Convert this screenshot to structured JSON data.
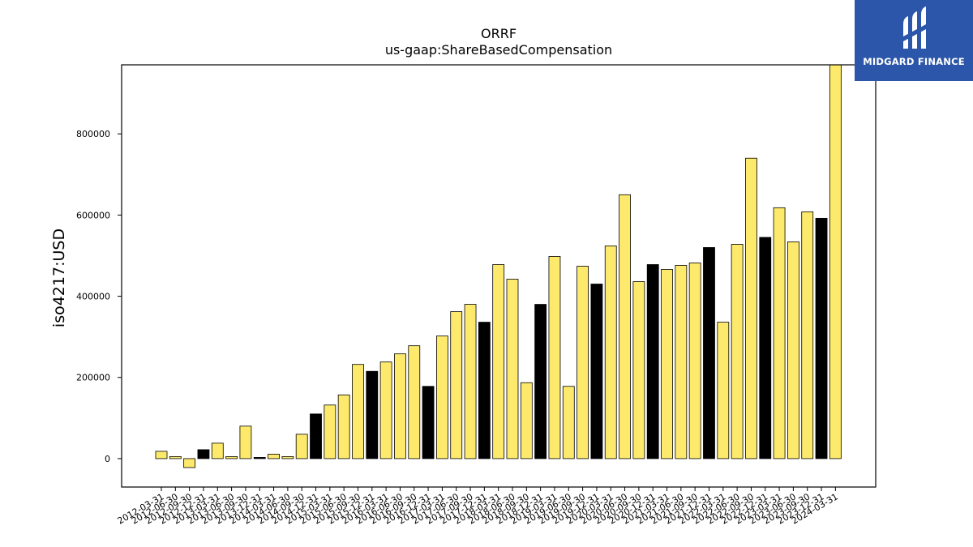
{
  "logo": {
    "text": "MIDGARD FINANCE"
  },
  "colors": {
    "yellow": "#fde96b",
    "black": "#000000",
    "logo_bg": "#2b56a9"
  },
  "chart_data": {
    "type": "bar",
    "title": "ORRF",
    "subtitle": "us-gaap:ShareBasedCompensation",
    "xlabel": "",
    "ylabel": "iso4217:USD",
    "ylim": [
      -70000,
      970000
    ],
    "yticks": [
      0,
      200000,
      400000,
      600000,
      800000
    ],
    "grid": false,
    "categories": [
      "2012-03-31",
      "2012-06-30",
      "2012-09-30",
      "2012-12-31",
      "2013-03-31",
      "2013-06-30",
      "2013-09-30",
      "2013-12-31",
      "2014-03-31",
      "2014-06-30",
      "2014-09-30",
      "2014-12-31",
      "2015-03-31",
      "2015-06-30",
      "2015-09-30",
      "2015-12-31",
      "2016-03-31",
      "2016-06-30",
      "2016-09-30",
      "2016-12-31",
      "2017-03-31",
      "2017-06-30",
      "2017-09-30",
      "2017-12-31",
      "2018-03-31",
      "2018-06-30",
      "2018-09-30",
      "2018-12-31",
      "2019-03-31",
      "2019-06-30",
      "2019-09-30",
      "2019-12-31",
      "2020-03-31",
      "2020-06-30",
      "2020-09-30",
      "2020-12-31",
      "2021-03-31",
      "2021-06-30",
      "2021-09-30",
      "2021-12-31",
      "2022-03-31",
      "2022-06-30",
      "2022-09-30",
      "2022-12-31",
      "2023-03-31",
      "2023-06-30",
      "2023-09-30",
      "2023-12-31",
      "2024-03-31"
    ],
    "values": [
      18000,
      5000,
      -22000,
      22000,
      38000,
      5000,
      80000,
      3000,
      11000,
      5000,
      60000,
      110000,
      132000,
      157000,
      232000,
      215000,
      238000,
      258000,
      278000,
      178000,
      302000,
      362000,
      380000,
      336000,
      478000,
      442000,
      187000,
      380000,
      498000,
      178000,
      474000,
      430000,
      524000,
      650000,
      436000,
      478000,
      466000,
      476000,
      482000,
      520000,
      336000,
      528000,
      740000,
      545000,
      618000,
      534000,
      608000,
      592000,
      970000
    ],
    "bar_colors": [
      "yellow",
      "yellow",
      "yellow",
      "black",
      "yellow",
      "yellow",
      "yellow",
      "black",
      "yellow",
      "yellow",
      "yellow",
      "black",
      "yellow",
      "yellow",
      "yellow",
      "black",
      "yellow",
      "yellow",
      "yellow",
      "black",
      "yellow",
      "yellow",
      "yellow",
      "black",
      "yellow",
      "yellow",
      "yellow",
      "black",
      "yellow",
      "yellow",
      "yellow",
      "black",
      "yellow",
      "yellow",
      "yellow",
      "black",
      "yellow",
      "yellow",
      "yellow",
      "black",
      "yellow",
      "yellow",
      "yellow",
      "black",
      "yellow",
      "yellow",
      "yellow",
      "black",
      "yellow"
    ]
  }
}
